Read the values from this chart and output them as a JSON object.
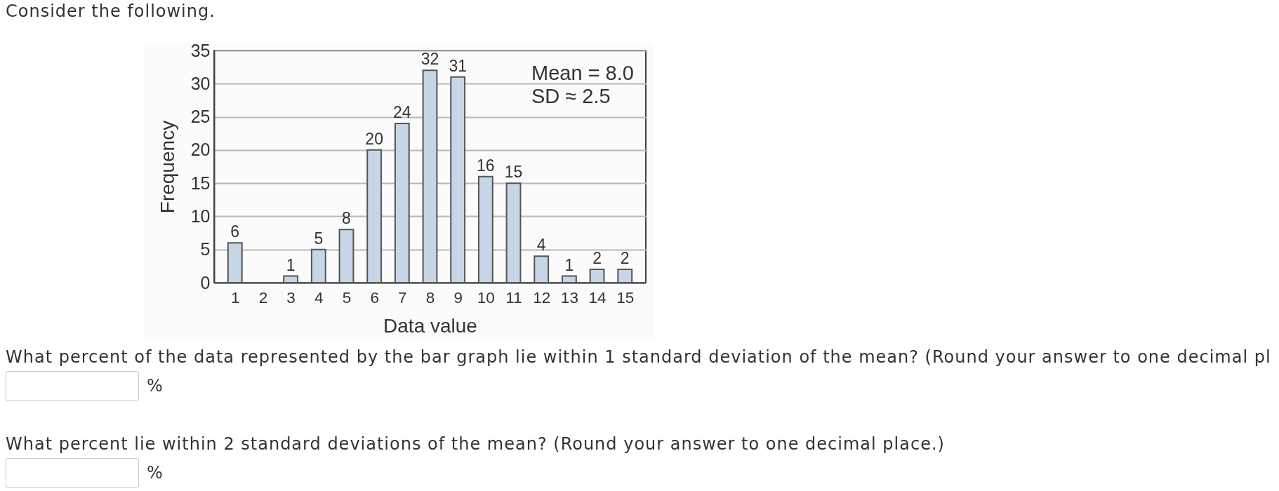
{
  "chart_data": {
    "type": "bar",
    "title": "Consider the following.",
    "x": [
      1,
      2,
      3,
      4,
      5,
      6,
      7,
      8,
      9,
      10,
      11,
      12,
      13,
      14,
      15
    ],
    "values": [
      6,
      null,
      1,
      5,
      8,
      20,
      24,
      32,
      31,
      16,
      15,
      4,
      1,
      2,
      2
    ],
    "value_labels": [
      "6",
      null,
      "1",
      "5",
      "8",
      "20",
      "24",
      "32",
      "31",
      "16",
      "15",
      "4",
      "1",
      "2",
      "2"
    ],
    "color": "#c6d6e6",
    "xlim": [
      0.25,
      15.75
    ],
    "xticks": [
      1,
      2,
      3,
      4,
      5,
      6,
      7,
      8,
      9,
      10,
      11,
      12,
      13,
      14,
      15
    ],
    "ylim": [
      0,
      35
    ],
    "yticks": [
      0,
      5,
      10,
      15,
      20,
      25,
      30,
      35
    ],
    "grid": "y",
    "xlabel": "Data value",
    "ylabel": "Frequency",
    "annotations": [
      "Mean = 8.0",
      "SD ≈ 2.5",
      "What percent of the data represented by the bar graph lie within 1 standard deviation of the mean? (Round your answer to one decimal pl",
      "%",
      "What percent lie within 2 standard deviations of the mean? (Round your answer to one decimal place.)",
      "%"
    ]
  }
}
